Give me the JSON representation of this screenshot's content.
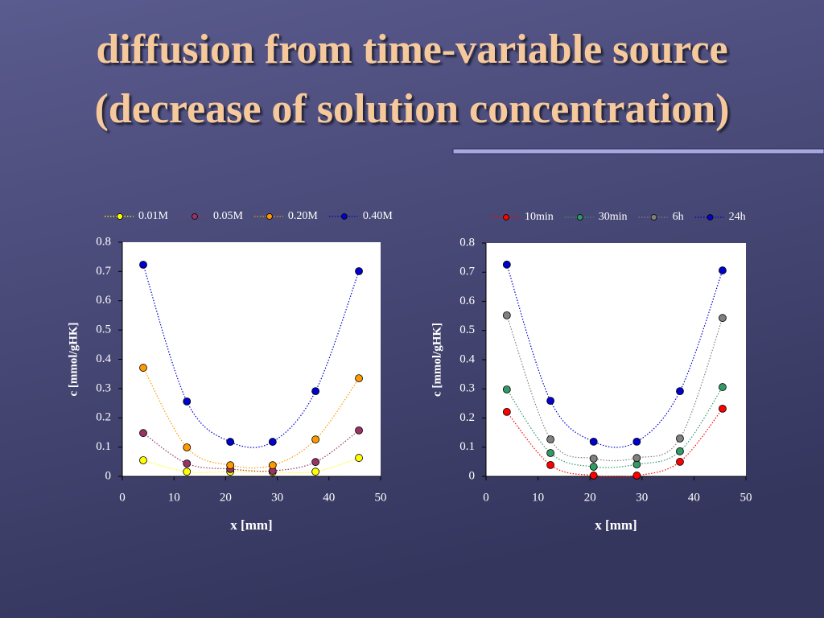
{
  "title": [
    "diffusion from time-variable source",
    "(decrease of solution concentration)"
  ],
  "chart_data": [
    {
      "type": "scatter",
      "xlabel": "x [mm]",
      "ylabel": "c [mmol/gHK]",
      "x": [
        4.05,
        12.5,
        20.9,
        29.1,
        37.4,
        45.8
      ],
      "xlim": [
        0,
        50
      ],
      "xticks": [
        0,
        10,
        20,
        30,
        40,
        50
      ],
      "ylim": [
        0,
        0.8
      ],
      "yticks": [
        0,
        0.1,
        0.2,
        0.3,
        0.4,
        0.5,
        0.6,
        0.7,
        0.8
      ],
      "legend": "top",
      "series": [
        {
          "name": "0.01M",
          "color": "#ffff00",
          "values": [
            0.055,
            0.016,
            0.016,
            0.015,
            0.016,
            0.063
          ]
        },
        {
          "name": "0.05M",
          "color": "#993366",
          "values": [
            0.148,
            0.044,
            0.025,
            0.019,
            0.049,
            0.157
          ]
        },
        {
          "name": "0.20M",
          "color": "#ff9900",
          "values": [
            0.371,
            0.099,
            0.038,
            0.038,
            0.126,
            0.335
          ]
        },
        {
          "name": "0.40M",
          "color": "#0000cc",
          "values": [
            0.723,
            0.256,
            0.118,
            0.118,
            0.291,
            0.701
          ]
        }
      ]
    },
    {
      "type": "scatter",
      "xlabel": "x [mm]",
      "ylabel": "c [mmol/gHK]",
      "x": [
        4.0,
        12.4,
        20.7,
        29.0,
        37.3,
        45.5
      ],
      "xlim": [
        0,
        50
      ],
      "xticks": [
        0,
        10,
        20,
        30,
        40,
        50
      ],
      "ylim": [
        0,
        0.8
      ],
      "yticks": [
        0,
        0.1,
        0.2,
        0.3,
        0.4,
        0.5,
        0.6,
        0.7,
        0.8
      ],
      "legend": "top",
      "series": [
        {
          "name": "10min",
          "color": "#ff0000",
          "values": [
            0.221,
            0.039,
            0.003,
            0.003,
            0.05,
            0.232
          ]
        },
        {
          "name": "30min",
          "color": "#339966",
          "values": [
            0.298,
            0.08,
            0.033,
            0.041,
            0.086,
            0.306
          ]
        },
        {
          "name": "6h",
          "color": "#808080",
          "values": [
            0.552,
            0.127,
            0.061,
            0.063,
            0.13,
            0.543
          ]
        },
        {
          "name": "24h",
          "color": "#0000cc",
          "values": [
            0.726,
            0.259,
            0.119,
            0.119,
            0.292,
            0.706
          ]
        }
      ]
    }
  ]
}
